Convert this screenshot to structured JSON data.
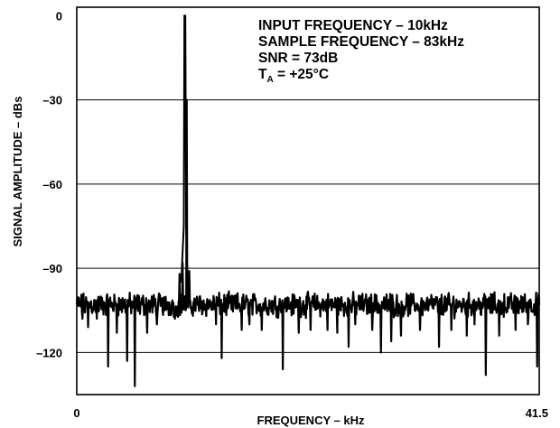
{
  "chart_data": {
    "type": "line",
    "xlabel": "FREQUENCY – kHz",
    "ylabel": "SIGNAL AMPLITUDE – dBs",
    "xlim": [
      0,
      41.5
    ],
    "ylim": [
      -135,
      3
    ],
    "x_tick_labels": [
      {
        "value": 0,
        "label": "0"
      },
      {
        "value": 41.5,
        "label": "41.5"
      }
    ],
    "y_tick_labels": [
      {
        "value": 0,
        "label": "0"
      },
      {
        "value": -30,
        "label": "–30"
      },
      {
        "value": -60,
        "label": "–60"
      },
      {
        "value": -90,
        "label": "–90"
      },
      {
        "value": -120,
        "label": "–120"
      }
    ],
    "grid": {
      "horizontal": true,
      "vertical": false
    },
    "annotations": [
      {
        "text": "INPUT FREQUENCY – 10kHz"
      },
      {
        "text": "SAMPLE FREQUENCY – 83kHz"
      },
      {
        "text": "SNR = 73dB"
      },
      {
        "text": "T",
        "sub": "A",
        "rest": " = +25°C"
      }
    ],
    "series": [
      {
        "kind": "noise_floor_spectrum",
        "noise_floor_db": -103,
        "noise_variation_db": 3,
        "signal_peak": {
          "x": 9.7,
          "y": 0
        },
        "peak_skirt": [
          {
            "x": 9.2,
            "y": -92
          },
          {
            "x": 9.5,
            "y": -88
          },
          {
            "x": 9.85,
            "y": -30
          },
          {
            "x": 10.1,
            "y": -91
          }
        ],
        "noise_spurs": [
          {
            "x": 0.5,
            "y": -108
          },
          {
            "x": 1.0,
            "y": -111
          },
          {
            "x": 1.8,
            "y": -108
          },
          {
            "x": 2.8,
            "y": -125
          },
          {
            "x": 3.6,
            "y": -113
          },
          {
            "x": 4.5,
            "y": -123
          },
          {
            "x": 5.2,
            "y": -132
          },
          {
            "x": 6.3,
            "y": -113
          },
          {
            "x": 7.2,
            "y": -110
          },
          {
            "x": 8.8,
            "y": -108
          },
          {
            "x": 12.5,
            "y": -110
          },
          {
            "x": 13.0,
            "y": -122
          },
          {
            "x": 14.8,
            "y": -112
          },
          {
            "x": 15.5,
            "y": -110
          },
          {
            "x": 16.6,
            "y": -112
          },
          {
            "x": 18.5,
            "y": -126
          },
          {
            "x": 19.9,
            "y": -113
          },
          {
            "x": 21.0,
            "y": -112
          },
          {
            "x": 22.5,
            "y": -112
          },
          {
            "x": 23.4,
            "y": -113
          },
          {
            "x": 24.4,
            "y": -118
          },
          {
            "x": 25.0,
            "y": -110
          },
          {
            "x": 26.5,
            "y": -112
          },
          {
            "x": 27.3,
            "y": -120
          },
          {
            "x": 28.2,
            "y": -116
          },
          {
            "x": 29.1,
            "y": -114
          },
          {
            "x": 30.8,
            "y": -112
          },
          {
            "x": 32.5,
            "y": -118
          },
          {
            "x": 33.6,
            "y": -112
          },
          {
            "x": 35.0,
            "y": -114
          },
          {
            "x": 35.7,
            "y": -110
          },
          {
            "x": 36.7,
            "y": -128
          },
          {
            "x": 37.9,
            "y": -114
          },
          {
            "x": 39.4,
            "y": -112
          },
          {
            "x": 40.5,
            "y": -110
          },
          {
            "x": 41.3,
            "y": -125
          }
        ]
      }
    ]
  }
}
